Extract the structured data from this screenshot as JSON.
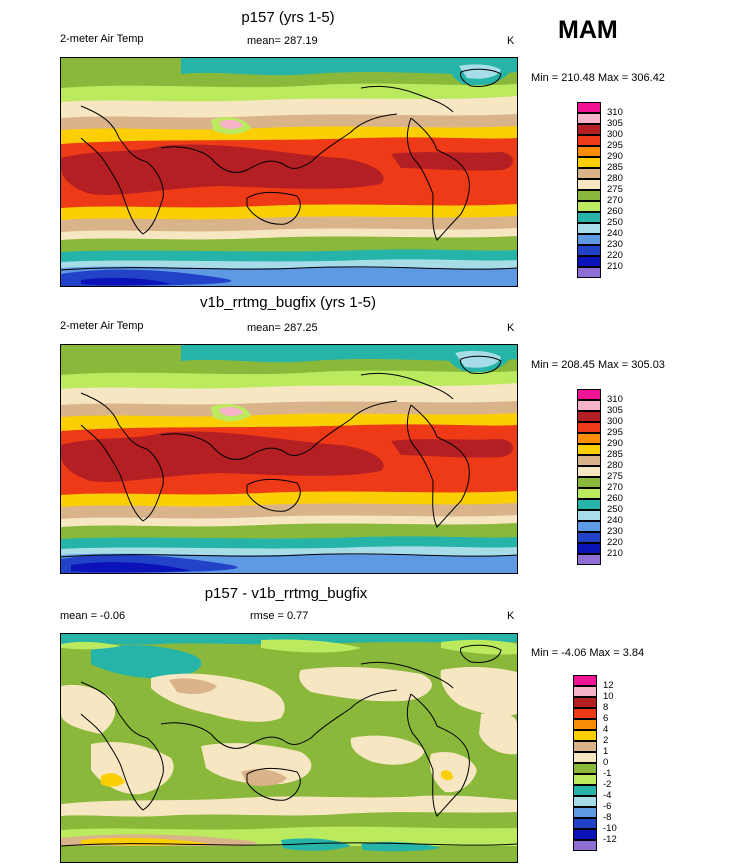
{
  "header": {
    "season": "MAM"
  },
  "panels": [
    {
      "title": "p157 (yrs 1-5)",
      "left_label": "2-meter Air Temp",
      "center_label": "mean= 287.19",
      "units": "K",
      "minmax": "Min = 210.48 Max = 306.42",
      "colorbar_labels": [
        "310",
        "305",
        "300",
        "295",
        "290",
        "285",
        "280",
        "275",
        "270",
        "260",
        "250",
        "240",
        "230",
        "220",
        "210"
      ],
      "colorbar_colors": [
        "#f21497",
        "#f7b3c7",
        "#b31f23",
        "#ee3a16",
        "#fa8d05",
        "#fccf04",
        "#d9b38a",
        "#f7e6c2",
        "#8ab83a",
        "#bbea5e",
        "#27b4a8",
        "#a6dde8",
        "#5d9ae3",
        "#2242c8",
        "#0a12b8",
        "#8f6fd6"
      ]
    },
    {
      "title": "v1b_rrtmg_bugfix (yrs 1-5)",
      "left_label": "2-meter Air Temp",
      "center_label": "mean= 287.25",
      "units": "K",
      "minmax": "Min = 208.45 Max = 305.03",
      "colorbar_labels": [
        "310",
        "305",
        "300",
        "295",
        "290",
        "285",
        "280",
        "275",
        "270",
        "260",
        "250",
        "240",
        "230",
        "220",
        "210"
      ],
      "colorbar_colors": [
        "#f21497",
        "#f7b3c7",
        "#b31f23",
        "#ee3a16",
        "#fa8d05",
        "#fccf04",
        "#d9b38a",
        "#f7e6c2",
        "#8ab83a",
        "#bbea5e",
        "#27b4a8",
        "#a6dde8",
        "#5d9ae3",
        "#2242c8",
        "#0a12b8",
        "#8f6fd6"
      ]
    },
    {
      "title": "p157 - v1b_rrtmg_bugfix",
      "left_label": "mean =  -0.06",
      "center_label": "rmse =   0.77",
      "units": "K",
      "minmax": "Min =  -4.06 Max =   3.84",
      "colorbar_labels": [
        "12",
        "10",
        "8",
        "6",
        "4",
        "2",
        "1",
        "0",
        "-1",
        "-2",
        "-4",
        "-6",
        "-8",
        "-10",
        "-12"
      ],
      "colorbar_colors": [
        "#f21497",
        "#f7b3c7",
        "#b31f23",
        "#ee3a16",
        "#fa8d05",
        "#fccf04",
        "#d9b38a",
        "#f7e6c2",
        "#8ab83a",
        "#bbea5e",
        "#27b4a8",
        "#a6dde8",
        "#5d9ae3",
        "#2242c8",
        "#0a12b8",
        "#8f6fd6"
      ]
    }
  ]
}
